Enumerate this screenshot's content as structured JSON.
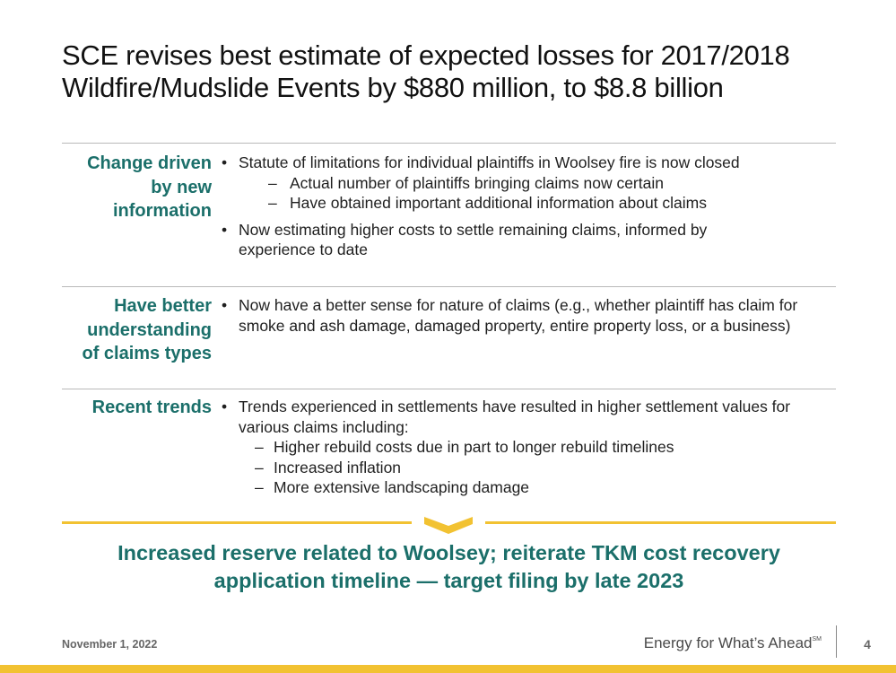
{
  "title": {
    "line1": "SCE revises best estimate of expected losses for 2017/2018",
    "line2": "Wildfire/Mudslide Events by $880 million, to $8.8 billion"
  },
  "rows": [
    {
      "label": [
        "Change driven",
        "by new",
        "information"
      ],
      "bullets": [
        {
          "text": "Statute of limitations for individual plaintiffs in Woolsey fire is now closed",
          "sub": [
            "Actual number of plaintiffs bringing claims now certain",
            "Have obtained important additional information about claims"
          ]
        },
        {
          "text": "Now estimating higher costs to settle remaining claims, informed by experience to date",
          "sub": []
        }
      ]
    },
    {
      "label": [
        "Have better",
        "understanding",
        "of claims types"
      ],
      "bullets": [
        {
          "text": "Now have a better sense for nature of claims (e.g., whether plaintiff has claim for smoke and ash damage, damaged property, entire property loss, or a business)",
          "sub": []
        }
      ]
    },
    {
      "label": [
        "Recent trends"
      ],
      "bullets": [
        {
          "text": "Trends experienced in settlements have resulted in higher settlement values for various claims including:",
          "sub": [
            "Higher rebuild costs due in part to longer rebuild timelines",
            "Increased inflation",
            "More extensive landscaping damage"
          ]
        }
      ]
    }
  ],
  "conclusion": {
    "line1": "Increased reserve related to Woolsey; reiterate TKM cost recovery",
    "line2": "application timeline — target filing by late 2023"
  },
  "footer": {
    "date": "November 1, 2022",
    "tagline": "Energy for What’s Ahead",
    "tagline_mark": "SM",
    "page": "4"
  },
  "colors": {
    "accent_teal": "#1b6f6a",
    "accent_gold": "#f2c232"
  }
}
